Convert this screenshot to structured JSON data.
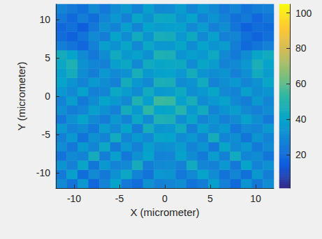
{
  "chart_data": {
    "type": "heatmap",
    "xlabel": "X (micrometer)",
    "ylabel": "Y (micrometer)",
    "x": [
      -11.4,
      -10.2,
      -9,
      -7.8,
      -6.6,
      -5.4,
      -4.2,
      -3,
      -1.8,
      -0.6,
      0.6,
      1.8,
      3,
      4.2,
      5.4,
      6.6,
      7.8,
      9,
      10.2,
      11.4
    ],
    "y": [
      -11.4,
      -10.2,
      -9,
      -7.8,
      -6.6,
      -5.4,
      -4.2,
      -3,
      -1.8,
      -0.6,
      0.6,
      1.8,
      3,
      4.2,
      5.4,
      6.6,
      7.8,
      9,
      10.2,
      11.4
    ],
    "values": [
      [
        30,
        22,
        35,
        18,
        28,
        40,
        25,
        20,
        33,
        27,
        29,
        31,
        22,
        26,
        38,
        27,
        19,
        34,
        24,
        31
      ],
      [
        25,
        38,
        20,
        30,
        24,
        33,
        42,
        28,
        22,
        35,
        34,
        24,
        30,
        40,
        31,
        22,
        29,
        21,
        36,
        26
      ],
      [
        34,
        27,
        41,
        23,
        36,
        28,
        30,
        45,
        26,
        30,
        31,
        27,
        44,
        29,
        27,
        35,
        24,
        40,
        28,
        33
      ],
      [
        22,
        30,
        28,
        45,
        26,
        38,
        24,
        33,
        40,
        28,
        29,
        39,
        31,
        25,
        37,
        27,
        44,
        29,
        31,
        23
      ],
      [
        31,
        24,
        36,
        29,
        42,
        25,
        35,
        27,
        38,
        32,
        33,
        37,
        28,
        34,
        24,
        41,
        30,
        35,
        25,
        30
      ],
      [
        27,
        35,
        22,
        33,
        28,
        44,
        29,
        36,
        30,
        41,
        40,
        31,
        35,
        28,
        45,
        29,
        32,
        23,
        34,
        28
      ],
      [
        36,
        28,
        31,
        25,
        37,
        30,
        40,
        26,
        45,
        34,
        35,
        44,
        27,
        39,
        31,
        36,
        24,
        30,
        29,
        35
      ],
      [
        24,
        33,
        40,
        30,
        26,
        35,
        28,
        42,
        31,
        48,
        47,
        32,
        41,
        29,
        34,
        27,
        31,
        39,
        32,
        25
      ],
      [
        32,
        26,
        29,
        38,
        33,
        27,
        45,
        36,
        52,
        40,
        41,
        50,
        35,
        44,
        28,
        34,
        37,
        30,
        27,
        31
      ],
      [
        28,
        37,
        25,
        31,
        40,
        36,
        30,
        48,
        38,
        55,
        54,
        39,
        46,
        31,
        35,
        39,
        30,
        26,
        36,
        29
      ],
      [
        35,
        30,
        39,
        27,
        29,
        42,
        37,
        31,
        44,
        36,
        37,
        43,
        32,
        36,
        41,
        30,
        28,
        38,
        31,
        34
      ],
      [
        40,
        34,
        28,
        36,
        31,
        27,
        45,
        35,
        30,
        47,
        46,
        31,
        34,
        44,
        28,
        32,
        35,
        29,
        33,
        41
      ],
      [
        38,
        45,
        31,
        26,
        35,
        30,
        33,
        46,
        36,
        39,
        40,
        35,
        45,
        34,
        31,
        34,
        27,
        32,
        44,
        37
      ],
      [
        42,
        48,
        33,
        29,
        27,
        38,
        42,
        30,
        44,
        41,
        42,
        43,
        31,
        41,
        37,
        28,
        30,
        35,
        47,
        40
      ],
      [
        45,
        40,
        30,
        24,
        31,
        44,
        36,
        39,
        33,
        48,
        47,
        34,
        38,
        35,
        43,
        30,
        25,
        31,
        41,
        44
      ],
      [
        26,
        22,
        18,
        27,
        38,
        33,
        41,
        30,
        42,
        35,
        36,
        41,
        31,
        40,
        34,
        37,
        26,
        19,
        23,
        27
      ],
      [
        20,
        16,
        22,
        30,
        26,
        40,
        31,
        44,
        34,
        46,
        45,
        35,
        43,
        30,
        39,
        27,
        29,
        21,
        17,
        21
      ],
      [
        18,
        21,
        15,
        24,
        33,
        28,
        38,
        29,
        40,
        37,
        38,
        39,
        30,
        37,
        27,
        32,
        23,
        16,
        20,
        19
      ],
      [
        24,
        19,
        26,
        20,
        29,
        35,
        27,
        41,
        33,
        43,
        42,
        34,
        40,
        28,
        34,
        28,
        21,
        25,
        18,
        23
      ],
      [
        28,
        25,
        21,
        30,
        24,
        31,
        36,
        28,
        38,
        30,
        31,
        37,
        29,
        35,
        30,
        25,
        29,
        22,
        26,
        27
      ]
    ],
    "xlim": [
      -12,
      12
    ],
    "ylim": [
      -12,
      12
    ],
    "xticks": [
      -10,
      -5,
      0,
      5,
      10
    ],
    "yticks": [
      -10,
      -5,
      0,
      5,
      10
    ],
    "colorbar": {
      "range": [
        1,
        105
      ],
      "ticks": [
        20,
        40,
        60,
        80,
        100
      ],
      "colormap": [
        "#352a87",
        "#0f5cdd",
        "#1481d6",
        "#06a4ca",
        "#2eb7a4",
        "#87bf77",
        "#d1bb59",
        "#fec832",
        "#f9fb0e"
      ]
    },
    "grid": false
  }
}
